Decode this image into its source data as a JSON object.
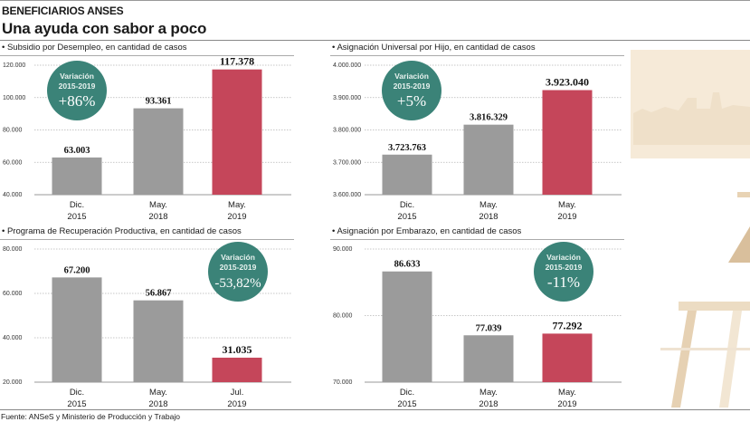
{
  "header": {
    "kicker": "BENEFICIARIOS ANSES",
    "title": "Una ayuda con sabor a poco"
  },
  "footer": {
    "source": "Fuente: ANSeS y Ministerio de Producción y Trabajo"
  },
  "colors": {
    "bar_past": "#9b9b9b",
    "bar_current": "#c5465a",
    "badge": "#3b8378",
    "grid": "#b5b5b5"
  },
  "chart_data": [
    {
      "type": "bar",
      "title": "• Subsidio por Desempleo, en cantidad de casos",
      "categories": [
        [
          "Dic.",
          "2015"
        ],
        [
          "May.",
          "2018"
        ],
        [
          "May.",
          "2019"
        ]
      ],
      "values": [
        63003,
        93361,
        117378
      ],
      "value_labels": [
        "63.003",
        "93.361",
        "117.378"
      ],
      "highlight_index": 2,
      "ylim": [
        40000,
        120000
      ],
      "yticks": [
        40000,
        60000,
        80000,
        100000,
        120000
      ],
      "ytick_labels": [
        "40.000",
        "60.000",
        "80.000",
        "100.000",
        "120.000"
      ],
      "grid": true,
      "badge": {
        "line1": "Variación",
        "line2": "2015-2019",
        "value": "+86%",
        "placement": "top-left"
      }
    },
    {
      "type": "bar",
      "title": "• Asignación Universal por Hijo, en cantidad de casos",
      "categories": [
        [
          "Dic.",
          "2015"
        ],
        [
          "May.",
          "2018"
        ],
        [
          "May.",
          "2019"
        ]
      ],
      "values": [
        3723763,
        3816329,
        3923040
      ],
      "value_labels": [
        "3.723.763",
        "3.816.329",
        "3.923.040"
      ],
      "highlight_index": 2,
      "ylim": [
        3600000,
        4000000
      ],
      "yticks": [
        3600000,
        3700000,
        3800000,
        3900000,
        4000000
      ],
      "ytick_labels": [
        "3.600.000",
        "3.700.000",
        "3.800.000",
        "3.900.000",
        "4.000.000"
      ],
      "grid": true,
      "badge": {
        "line1": "Variación",
        "line2": "2015-2019",
        "value": "+5%",
        "placement": "top-left"
      }
    },
    {
      "type": "bar",
      "title": "• Programa de Recuperación Productiva, en cantidad de casos",
      "categories": [
        [
          "Dic.",
          "2015"
        ],
        [
          "May.",
          "2018"
        ],
        [
          "Jul.",
          "2019"
        ]
      ],
      "values": [
        67200,
        56867,
        31035
      ],
      "value_labels": [
        "67.200",
        "56.867",
        "31.035"
      ],
      "highlight_index": 2,
      "ylim": [
        20000,
        80000
      ],
      "yticks": [
        20000,
        40000,
        60000,
        80000
      ],
      "ytick_labels": [
        "20.000",
        "40.000",
        "60.000",
        "80.000"
      ],
      "grid": true,
      "badge": {
        "line1": "Variación",
        "line2": "2015-2019",
        "value": "-53,82%",
        "placement": "top-right"
      }
    },
    {
      "type": "bar",
      "title": "• Asignación por Embarazo, en cantidad de casos",
      "categories": [
        [
          "Dic.",
          "2015"
        ],
        [
          "May.",
          "2018"
        ],
        [
          "May.",
          "2019"
        ]
      ],
      "values": [
        86633,
        77039,
        77292
      ],
      "value_labels": [
        "86.633",
        "77.039",
        "77.292"
      ],
      "highlight_index": 2,
      "ylim": [
        70000,
        90000
      ],
      "yticks": [
        70000,
        80000,
        90000
      ],
      "ytick_labels": [
        "70.000",
        "80.000",
        "90.000"
      ],
      "grid": true,
      "badge": {
        "line1": "Variación",
        "line2": "2015-2019",
        "value": "-11%",
        "placement": "top-right"
      }
    }
  ]
}
